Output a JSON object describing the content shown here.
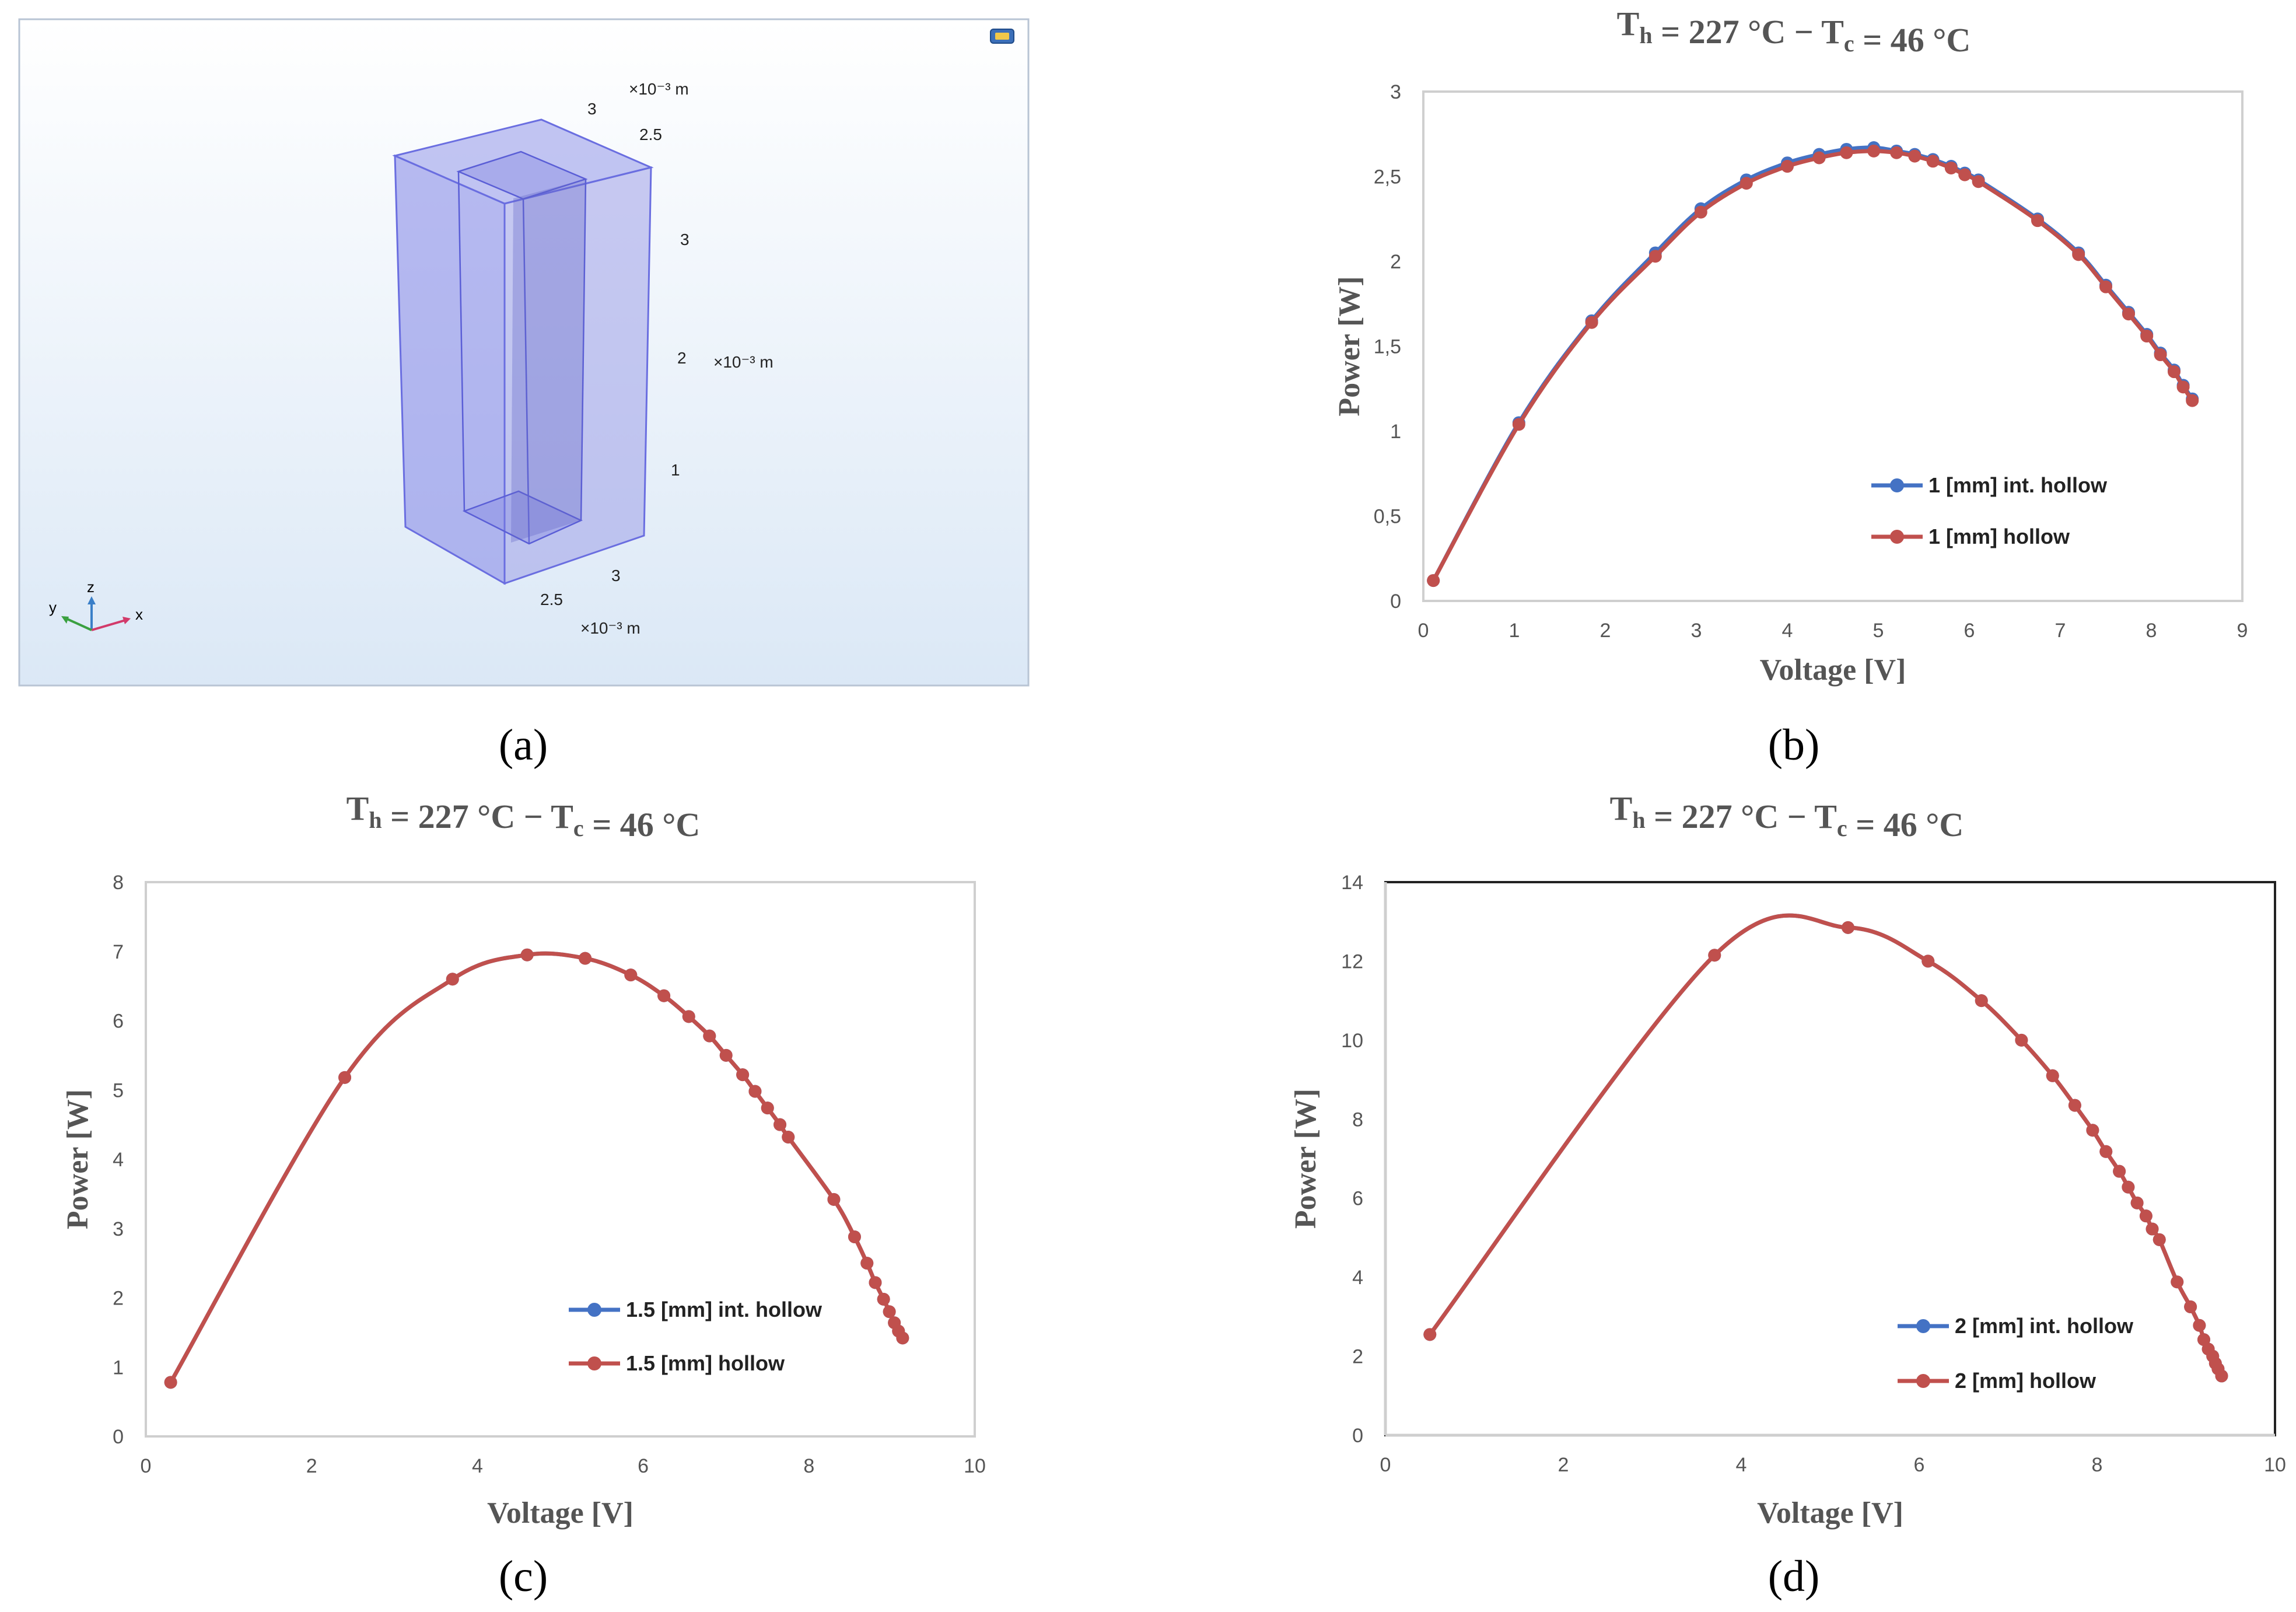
{
  "panel_a": {
    "caption": "(a)",
    "model": {
      "unit_top": "×10⁻³ m",
      "unit_right": "×10⁻³ m",
      "unit_bottom": "×10⁻³ m",
      "top_ticks": [
        "3",
        "2.5"
      ],
      "right_ticks": [
        "3",
        "2",
        "1"
      ],
      "bottom_ticks": [
        "3",
        "2.5"
      ],
      "triad": {
        "z": "z",
        "y": "y",
        "x": "x"
      }
    }
  },
  "chart_data": [
    {
      "id": "b",
      "caption": "(b)",
      "type": "line",
      "title": "Th = 227 °C − Tc = 46 °C",
      "title_parts": {
        "T": "T",
        "h": "h",
        "mid": " = 227 °C − ",
        "c": "c",
        "end": " = 46 °C"
      },
      "xlabel": "Voltage [V]",
      "ylabel": "Power [W]",
      "xlim": [
        0,
        9
      ],
      "ylim": [
        0,
        3
      ],
      "xticks": [
        "0",
        "1",
        "2",
        "3",
        "4",
        "5",
        "6",
        "7",
        "8",
        "9"
      ],
      "yticks": [
        "0",
        "0,5",
        "1",
        "1,5",
        "2",
        "2,5",
        "3"
      ],
      "legend_position": "bottom-right",
      "series": [
        {
          "name": "1 [mm] int. hollow",
          "color": "#4472c4",
          "x": [
            0.11,
            1.05,
            1.85,
            2.55,
            3.05,
            3.55,
            4.0,
            4.35,
            4.65,
            4.95,
            5.2,
            5.4,
            5.6,
            5.8,
            5.95,
            6.1,
            6.75,
            7.2,
            7.5,
            7.75,
            7.95,
            8.1,
            8.25,
            8.35,
            8.45
          ],
          "y": [
            0.12,
            1.05,
            1.65,
            2.05,
            2.31,
            2.48,
            2.58,
            2.63,
            2.66,
            2.67,
            2.65,
            2.63,
            2.6,
            2.56,
            2.52,
            2.48,
            2.25,
            2.05,
            1.86,
            1.7,
            1.57,
            1.46,
            1.36,
            1.27,
            1.19
          ]
        },
        {
          "name": "1 [mm] hollow",
          "color": "#c0504d",
          "x": [
            0.11,
            1.05,
            1.85,
            2.55,
            3.05,
            3.55,
            4.0,
            4.35,
            4.65,
            4.95,
            5.2,
            5.4,
            5.6,
            5.8,
            5.95,
            6.1,
            6.75,
            7.2,
            7.5,
            7.75,
            7.95,
            8.1,
            8.25,
            8.35,
            8.45
          ],
          "y": [
            0.12,
            1.04,
            1.64,
            2.03,
            2.29,
            2.46,
            2.56,
            2.61,
            2.64,
            2.65,
            2.64,
            2.62,
            2.59,
            2.55,
            2.51,
            2.47,
            2.24,
            2.04,
            1.85,
            1.69,
            1.56,
            1.45,
            1.35,
            1.26,
            1.18
          ]
        }
      ]
    },
    {
      "id": "c",
      "caption": "(c)",
      "type": "line",
      "title": "Th = 227 °C − Tc = 46 °C",
      "title_parts": {
        "T": "T",
        "h": "h",
        "mid": " = 227 °C − ",
        "c": "c",
        "end": " = 46 °C"
      },
      "xlabel": "Voltage [V]",
      "ylabel": "Power [W]",
      "xlim": [
        0,
        10
      ],
      "ylim": [
        0,
        8
      ],
      "xticks": [
        "0",
        "2",
        "4",
        "6",
        "8",
        "10"
      ],
      "yticks": [
        "0",
        "1",
        "2",
        "3",
        "4",
        "5",
        "6",
        "7",
        "8"
      ],
      "legend_position": "bottom-right",
      "series": [
        {
          "name": "1.5 [mm] int. hollow",
          "color": "#4472c4",
          "x": [
            0.3,
            2.4,
            3.7,
            4.6,
            5.3,
            5.85,
            6.25,
            6.55,
            6.8,
            7.0,
            7.2,
            7.35,
            7.5,
            7.65,
            7.75,
            8.3,
            8.55,
            8.7,
            8.8,
            8.9,
            8.97,
            9.03,
            9.08,
            9.13
          ],
          "y": [
            0.78,
            5.18,
            6.6,
            6.95,
            6.9,
            6.66,
            6.36,
            6.06,
            5.78,
            5.5,
            5.22,
            4.98,
            4.74,
            4.5,
            4.32,
            3.42,
            2.88,
            2.5,
            2.22,
            1.98,
            1.8,
            1.64,
            1.52,
            1.42
          ]
        },
        {
          "name": "1.5 [mm] hollow",
          "color": "#c0504d",
          "x": [
            0.3,
            2.4,
            3.7,
            4.6,
            5.3,
            5.85,
            6.25,
            6.55,
            6.8,
            7.0,
            7.2,
            7.35,
            7.5,
            7.65,
            7.75,
            8.3,
            8.55,
            8.7,
            8.8,
            8.9,
            8.97,
            9.03,
            9.08,
            9.13
          ],
          "y": [
            0.78,
            5.18,
            6.6,
            6.95,
            6.9,
            6.66,
            6.36,
            6.06,
            5.78,
            5.5,
            5.22,
            4.98,
            4.74,
            4.5,
            4.32,
            3.42,
            2.88,
            2.5,
            2.22,
            1.98,
            1.8,
            1.64,
            1.52,
            1.42
          ]
        }
      ]
    },
    {
      "id": "d",
      "caption": "(d)",
      "type": "line",
      "title": "Th = 227 °C − Tc = 46 °C",
      "title_parts": {
        "T": "T",
        "h": "h",
        "mid": " = 227 °C − ",
        "c": "c",
        "end": " = 46 °C"
      },
      "xlabel": "Voltage [V]",
      "ylabel": "Power [W]",
      "xlim": [
        0,
        10
      ],
      "ylim": [
        0,
        14
      ],
      "xticks": [
        "0",
        "2",
        "4",
        "6",
        "8",
        "10"
      ],
      "yticks": [
        "0",
        "2",
        "4",
        "6",
        "8",
        "10",
        "12",
        "14"
      ],
      "legend_position": "bottom-right",
      "series": [
        {
          "name": "2 [mm] int. hollow",
          "color": "#4472c4",
          "x": [
            0.5,
            3.7,
            5.2,
            6.1,
            6.7,
            7.15,
            7.5,
            7.75,
            7.95,
            8.1,
            8.25,
            8.35,
            8.45,
            8.55,
            8.62,
            8.7,
            8.9,
            9.05,
            9.15,
            9.2,
            9.25,
            9.3,
            9.33,
            9.36,
            9.4
          ],
          "y": [
            2.55,
            12.15,
            12.85,
            12.0,
            11.0,
            10.0,
            9.1,
            8.35,
            7.72,
            7.18,
            6.68,
            6.28,
            5.88,
            5.55,
            5.22,
            4.95,
            3.88,
            3.25,
            2.78,
            2.42,
            2.18,
            2.0,
            1.82,
            1.68,
            1.5
          ]
        },
        {
          "name": "2 [mm] hollow",
          "color": "#c0504d",
          "x": [
            0.5,
            3.7,
            5.2,
            6.1,
            6.7,
            7.15,
            7.5,
            7.75,
            7.95,
            8.1,
            8.25,
            8.35,
            8.45,
            8.55,
            8.62,
            8.7,
            8.9,
            9.05,
            9.15,
            9.2,
            9.25,
            9.3,
            9.33,
            9.36,
            9.4
          ],
          "y": [
            2.55,
            12.15,
            12.85,
            12.0,
            11.0,
            10.0,
            9.1,
            8.35,
            7.72,
            7.18,
            6.68,
            6.28,
            5.88,
            5.55,
            5.22,
            4.95,
            3.88,
            3.25,
            2.78,
            2.42,
            2.18,
            2.0,
            1.82,
            1.68,
            1.5
          ]
        }
      ]
    }
  ]
}
